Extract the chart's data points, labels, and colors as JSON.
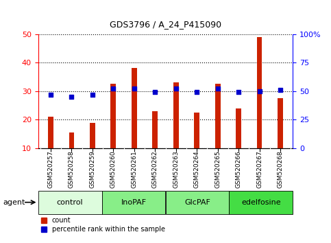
{
  "title": "GDS3796 / A_24_P415090",
  "samples": [
    "GSM520257",
    "GSM520258",
    "GSM520259",
    "GSM520260",
    "GSM520261",
    "GSM520262",
    "GSM520263",
    "GSM520264",
    "GSM520265",
    "GSM520266",
    "GSM520267",
    "GSM520268"
  ],
  "count_values": [
    21,
    15.5,
    19,
    32.5,
    38,
    23,
    33,
    22.5,
    32.5,
    24,
    49,
    27.5
  ],
  "percentile_values": [
    47,
    45,
    47,
    52,
    52,
    49,
    52,
    49,
    52,
    49,
    50,
    51
  ],
  "groups": [
    {
      "label": "control",
      "start": 0,
      "end": 3,
      "color": "#ddfcdd"
    },
    {
      "label": "InoPAF",
      "start": 3,
      "end": 6,
      "color": "#88ee88"
    },
    {
      "label": "GlcPAF",
      "start": 6,
      "end": 9,
      "color": "#88ee88"
    },
    {
      "label": "edelfosine",
      "start": 9,
      "end": 12,
      "color": "#44dd44"
    }
  ],
  "bar_color": "#cc2200",
  "dot_color": "#0000cc",
  "left_yticks": [
    10,
    20,
    30,
    40,
    50
  ],
  "right_yticks": [
    0,
    25,
    50,
    75,
    100
  ],
  "left_ylim": [
    10,
    50
  ],
  "right_ylim": [
    0,
    100
  ],
  "agent_label": "agent",
  "legend_items": [
    {
      "label": "count",
      "color": "#cc2200"
    },
    {
      "label": "percentile rank within the sample",
      "color": "#0000cc"
    }
  ],
  "plot_bg": "#ffffff",
  "tick_bg": "#d0d0d0",
  "bar_width": 0.25
}
